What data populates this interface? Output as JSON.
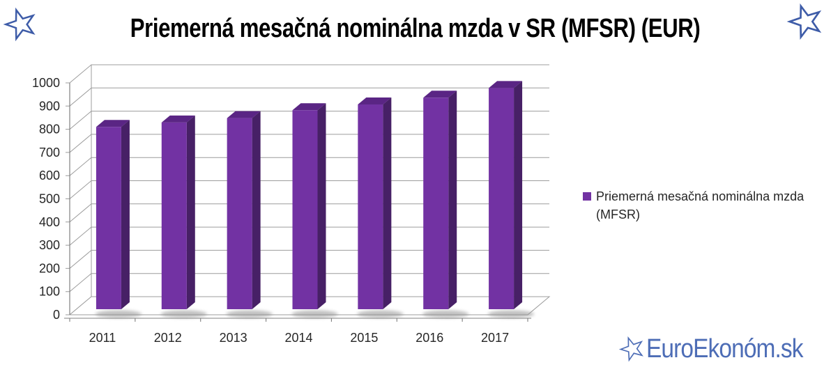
{
  "title": "Priemerná mesačná nominálna mzda v SR (MFSR) (EUR)",
  "chart_data": {
    "type": "bar",
    "style": "3d-column",
    "title": "Priemerná mesačná nominálna mzda v SR (MFSR) (EUR)",
    "categories": [
      "2011",
      "2012",
      "2013",
      "2014",
      "2015",
      "2016",
      "2017"
    ],
    "series": [
      {
        "name": "Priemerná mesačná nominálna mzda (MFSR)",
        "values": [
          786,
          805,
          824,
          858,
          883,
          912,
          954
        ]
      }
    ],
    "xlabel": "",
    "ylabel": "",
    "ylim": [
      0,
      1000
    ],
    "yticks": [
      0,
      100,
      200,
      300,
      400,
      500,
      600,
      700,
      800,
      900,
      1000
    ],
    "grid": true,
    "legend_position": "right",
    "colors": {
      "bar_front": "#7232A3",
      "bar_top": "#5A2584",
      "bar_side": "#472066",
      "grid": "#9C9C9C",
      "axis": "#808080",
      "label": "#262626"
    }
  },
  "legend": {
    "swatch_color": "#7232A3",
    "line1": "Priemerná mesačná nominálna mzda",
    "line2": "(MFSR)"
  },
  "watermark": {
    "star_icon": "star-outline",
    "text": "EuroEkonóm.sk",
    "color": "#4D6DB6"
  },
  "decorations": {
    "corner_star_color": "#3E5CA8"
  }
}
